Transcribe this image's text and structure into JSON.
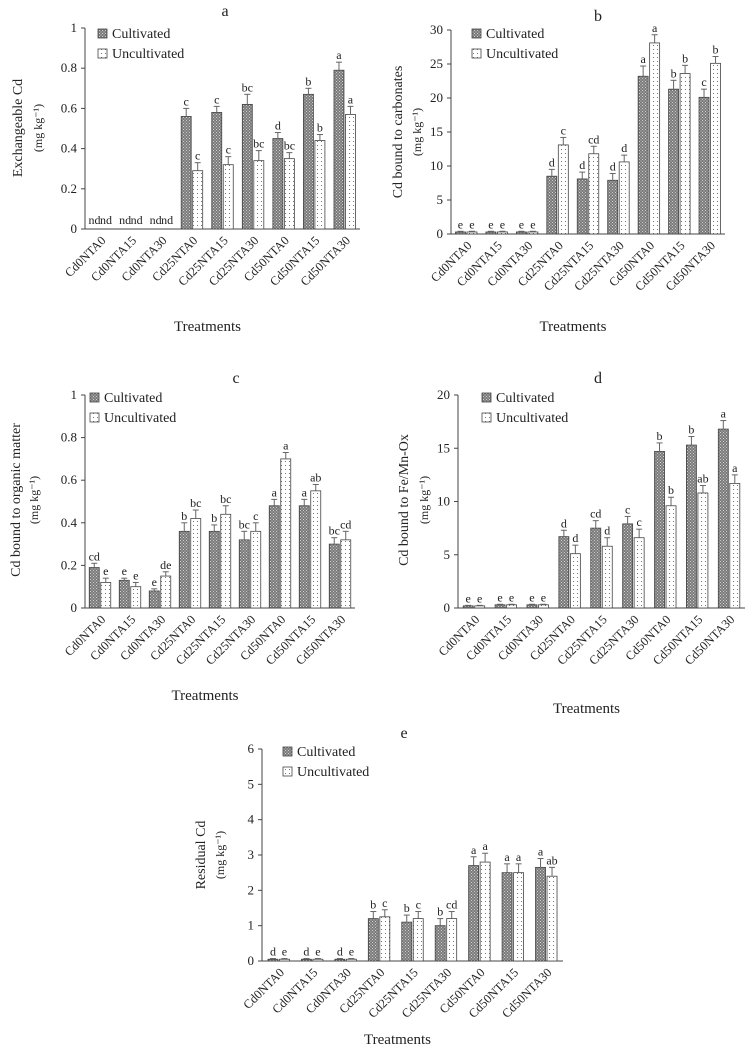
{
  "figure": {
    "treatment_label": "Treatments",
    "legend": {
      "cultivated": "Cultivated",
      "uncultivated": "Uncultivated"
    },
    "colors": {
      "cultivated_fill": "#8c8c8c",
      "uncultivated_fill": "#ffffff",
      "axis": "#444444",
      "error_bar": "#666666"
    }
  },
  "chart_data": [
    {
      "id": "a",
      "type": "bar",
      "title": "a",
      "xlabel": "Treatments",
      "ylabel_line1": "Exchangeable Cd",
      "ylabel_line2": "(mg kg⁻¹)",
      "ylim": [
        0,
        1
      ],
      "yticks": [
        "0",
        "0.2",
        "0.4",
        "0.6",
        "0.8",
        "1"
      ],
      "ytick_values": [
        0,
        0.2,
        0.4,
        0.6,
        0.8,
        1
      ],
      "categories": [
        "Cd0NTA0",
        "Cd0NTA15",
        "Cd0NTA30",
        "Cd25NTA0",
        "Cd25NTA15",
        "Cd25NTA30",
        "Cd50NTA0",
        "Cd50NTA15",
        "Cd50NTA30"
      ],
      "legend_position": "top-left",
      "series": [
        {
          "name": "Cultivated",
          "values": [
            0,
            0,
            0,
            0.56,
            0.58,
            0.62,
            0.45,
            0.67,
            0.79
          ],
          "errors": [
            0,
            0,
            0,
            0.04,
            0.03,
            0.05,
            0.03,
            0.03,
            0.04
          ],
          "letters": [
            "nd",
            "nd",
            "nd",
            "c",
            "c",
            "bc",
            "d",
            "b",
            "a"
          ]
        },
        {
          "name": "Uncultivated",
          "values": [
            0,
            0,
            0,
            0.29,
            0.32,
            0.34,
            0.35,
            0.44,
            0.57
          ],
          "errors": [
            0,
            0,
            0,
            0.04,
            0.04,
            0.05,
            0.03,
            0.03,
            0.04
          ],
          "letters": [
            "nd",
            "nd",
            "nd",
            "c",
            "c",
            "bc",
            "bc",
            "b",
            "a"
          ]
        }
      ]
    },
    {
      "id": "b",
      "type": "bar",
      "title": "b",
      "xlabel": "Treatments",
      "ylabel_line1": "Cd bound to carbonates",
      "ylabel_line2": "(mg kg⁻¹)",
      "ylim": [
        0,
        30
      ],
      "yticks": [
        "0",
        "5",
        "10",
        "15",
        "20",
        "25",
        "30"
      ],
      "ytick_values": [
        0,
        5,
        10,
        15,
        20,
        25,
        30
      ],
      "categories": [
        "Cd0NTA0",
        "Cd0NTA15",
        "Cd0NTA30",
        "Cd25NTA0",
        "Cd25NTA15",
        "Cd25NTA30",
        "Cd50NTA0",
        "Cd50NTA15",
        "Cd50NTA30"
      ],
      "legend_position": "top-left",
      "series": [
        {
          "name": "Cultivated",
          "values": [
            0.3,
            0.3,
            0.3,
            8.5,
            8.1,
            7.9,
            23.2,
            21.3,
            20.1
          ],
          "errors": [
            0.1,
            0.1,
            0.1,
            1.0,
            1.0,
            1.0,
            1.5,
            1.3,
            1.2
          ],
          "letters": [
            "e",
            "e",
            "e",
            "d",
            "d",
            "d",
            "a",
            "b",
            "c"
          ]
        },
        {
          "name": "Uncultivated",
          "values": [
            0.3,
            0.3,
            0.3,
            13.1,
            11.8,
            10.6,
            28.1,
            23.6,
            25.1
          ],
          "errors": [
            0.1,
            0.1,
            0.1,
            1.1,
            1.1,
            1.0,
            1.2,
            1.2,
            1.0
          ],
          "letters": [
            "e",
            "e",
            "e",
            "c",
            "cd",
            "d",
            "a",
            "b",
            "b"
          ]
        }
      ]
    },
    {
      "id": "c",
      "type": "bar",
      "title": "c",
      "xlabel": "Treatments",
      "ylabel_line1": "Cd bound to organic matter",
      "ylabel_line2": "(mg kg⁻¹)",
      "ylim": [
        0,
        1
      ],
      "yticks": [
        "0",
        "0.2",
        "0.4",
        "0.6",
        "0.8",
        "1"
      ],
      "ytick_values": [
        0,
        0.2,
        0.4,
        0.6,
        0.8,
        1
      ],
      "categories": [
        "Cd0NTA0",
        "Cd0NTA15",
        "Cd0NTA30",
        "Cd25NTA0",
        "Cd25NTA15",
        "Cd25NTA30",
        "Cd50NTA0",
        "Cd50NTA15",
        "Cd50NTA30"
      ],
      "legend_position": "top-left",
      "series": [
        {
          "name": "Cultivated",
          "values": [
            0.19,
            0.13,
            0.08,
            0.36,
            0.36,
            0.32,
            0.48,
            0.48,
            0.3
          ],
          "errors": [
            0.02,
            0.01,
            0.01,
            0.04,
            0.03,
            0.04,
            0.03,
            0.03,
            0.03
          ],
          "letters": [
            "cd",
            "e",
            "e",
            "b",
            "b",
            "bc",
            "a",
            "a",
            "bc"
          ]
        },
        {
          "name": "Uncultivated",
          "values": [
            0.12,
            0.1,
            0.15,
            0.42,
            0.44,
            0.36,
            0.7,
            0.55,
            0.32
          ],
          "errors": [
            0.02,
            0.02,
            0.02,
            0.04,
            0.04,
            0.04,
            0.03,
            0.03,
            0.04
          ],
          "letters": [
            "e",
            "e",
            "de",
            "bc",
            "bc",
            "c",
            "a",
            "ab",
            "cd"
          ]
        }
      ]
    },
    {
      "id": "d",
      "type": "bar",
      "title": "d",
      "xlabel": "Treatments",
      "ylabel_line1": "Cd bound to Fe/Mn-Ox",
      "ylabel_line2": "(mg kg⁻¹)",
      "ylim": [
        0,
        20
      ],
      "yticks": [
        "0",
        "5",
        "10",
        "15",
        "20"
      ],
      "ytick_values": [
        0,
        5,
        10,
        15,
        20
      ],
      "categories": [
        "Cd0NTA0",
        "Cd0NTA15",
        "Cd0NTA30",
        "Cd25NTA0",
        "Cd25NTA15",
        "Cd25NTA30",
        "Cd50NTA0",
        "Cd50NTA15",
        "Cd50NTA30"
      ],
      "legend_position": "top-left",
      "series": [
        {
          "name": "Cultivated",
          "values": [
            0.2,
            0.3,
            0.3,
            6.7,
            7.5,
            7.9,
            14.7,
            15.3,
            16.8
          ],
          "errors": [
            0.05,
            0.05,
            0.05,
            0.6,
            0.7,
            0.7,
            0.8,
            0.8,
            0.8
          ],
          "letters": [
            "e",
            "e",
            "e",
            "d",
            "cd",
            "c",
            "b",
            "b",
            "a"
          ]
        },
        {
          "name": "Uncultivated",
          "values": [
            0.2,
            0.3,
            0.3,
            5.1,
            5.8,
            6.6,
            9.6,
            10.8,
            11.7
          ],
          "errors": [
            0.05,
            0.05,
            0.05,
            0.8,
            0.8,
            0.8,
            0.8,
            0.7,
            0.8
          ],
          "letters": [
            "e",
            "e",
            "e",
            "d",
            "d",
            "c",
            "b",
            "ab",
            "a"
          ]
        }
      ]
    },
    {
      "id": "e",
      "type": "bar",
      "title": "e",
      "xlabel": "Treatments",
      "ylabel_line1": "Residual Cd",
      "ylabel_line2": "(mg kg⁻¹)",
      "ylim": [
        0,
        6
      ],
      "yticks": [
        "0",
        "1",
        "2",
        "3",
        "4",
        "5",
        "6"
      ],
      "ytick_values": [
        0,
        1,
        2,
        3,
        4,
        5,
        6
      ],
      "categories": [
        "Cd0NTA0",
        "Cd0NTA15",
        "Cd0NTA30",
        "Cd25NTA0",
        "Cd25NTA15",
        "Cd25NTA30",
        "Cd50NTA0",
        "Cd50NTA15",
        "Cd50NTA30"
      ],
      "legend_position": "top-left",
      "series": [
        {
          "name": "Cultivated",
          "values": [
            0.05,
            0.05,
            0.05,
            1.2,
            1.1,
            1.0,
            2.7,
            2.5,
            2.65
          ],
          "errors": [
            0.02,
            0.02,
            0.02,
            0.2,
            0.2,
            0.2,
            0.25,
            0.25,
            0.25
          ],
          "letters": [
            "d",
            "d",
            "d",
            "b",
            "b",
            "b",
            "a",
            "a",
            "a"
          ]
        },
        {
          "name": "Uncultivated",
          "values": [
            0.05,
            0.05,
            0.05,
            1.25,
            1.2,
            1.2,
            2.8,
            2.5,
            2.4
          ],
          "errors": [
            0.02,
            0.02,
            0.02,
            0.2,
            0.2,
            0.2,
            0.25,
            0.25,
            0.25
          ],
          "letters": [
            "e",
            "e",
            "e",
            "c",
            "c",
            "cd",
            "a",
            "a",
            "ab"
          ]
        }
      ]
    }
  ]
}
